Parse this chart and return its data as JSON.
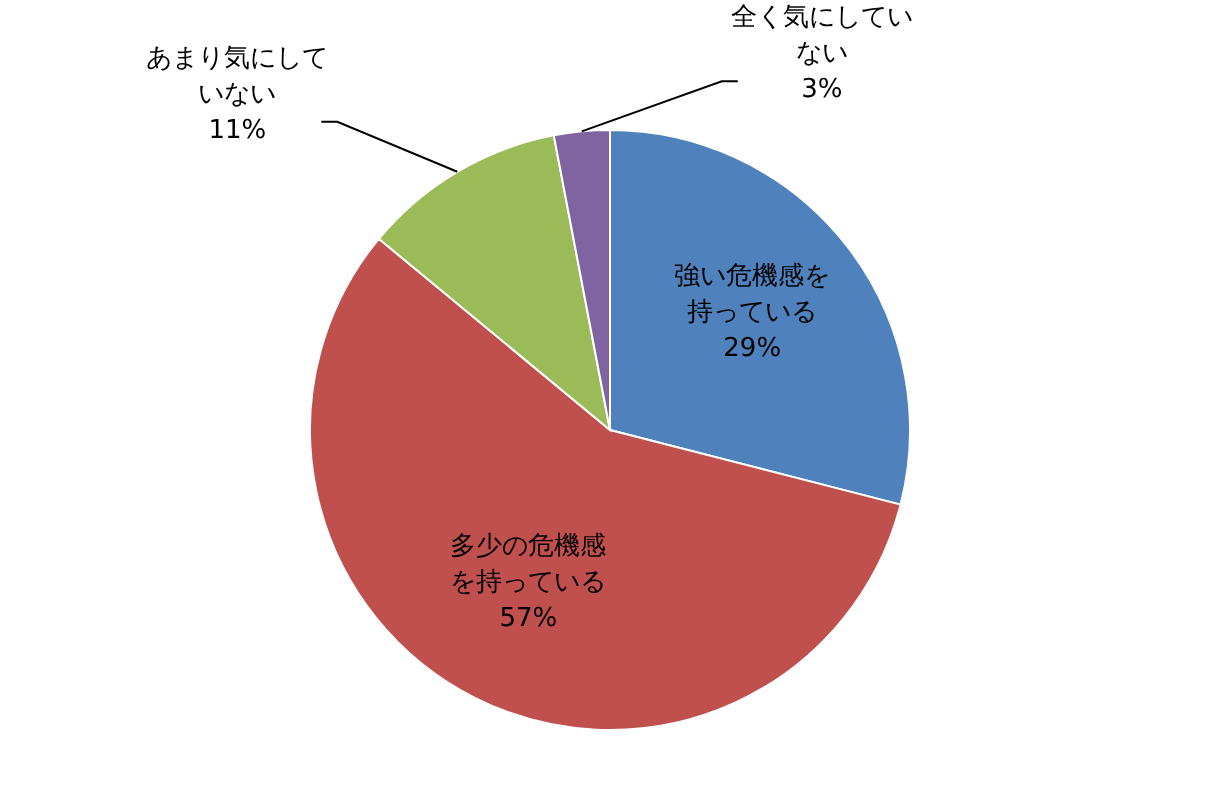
{
  "chart_data": {
    "type": "pie",
    "value_labels": [
      "29%",
      "57%",
      "11%",
      "3%"
    ],
    "categories": [
      "強い危機感を持っている",
      "多少の危機感を持っている",
      "あまり気にしていない",
      "全く気にしていない"
    ],
    "values": [
      29,
      57,
      11,
      3
    ],
    "colors": [
      "#4f81bd",
      "#c0504d",
      "#9bbb59",
      "#8064a2"
    ]
  }
}
